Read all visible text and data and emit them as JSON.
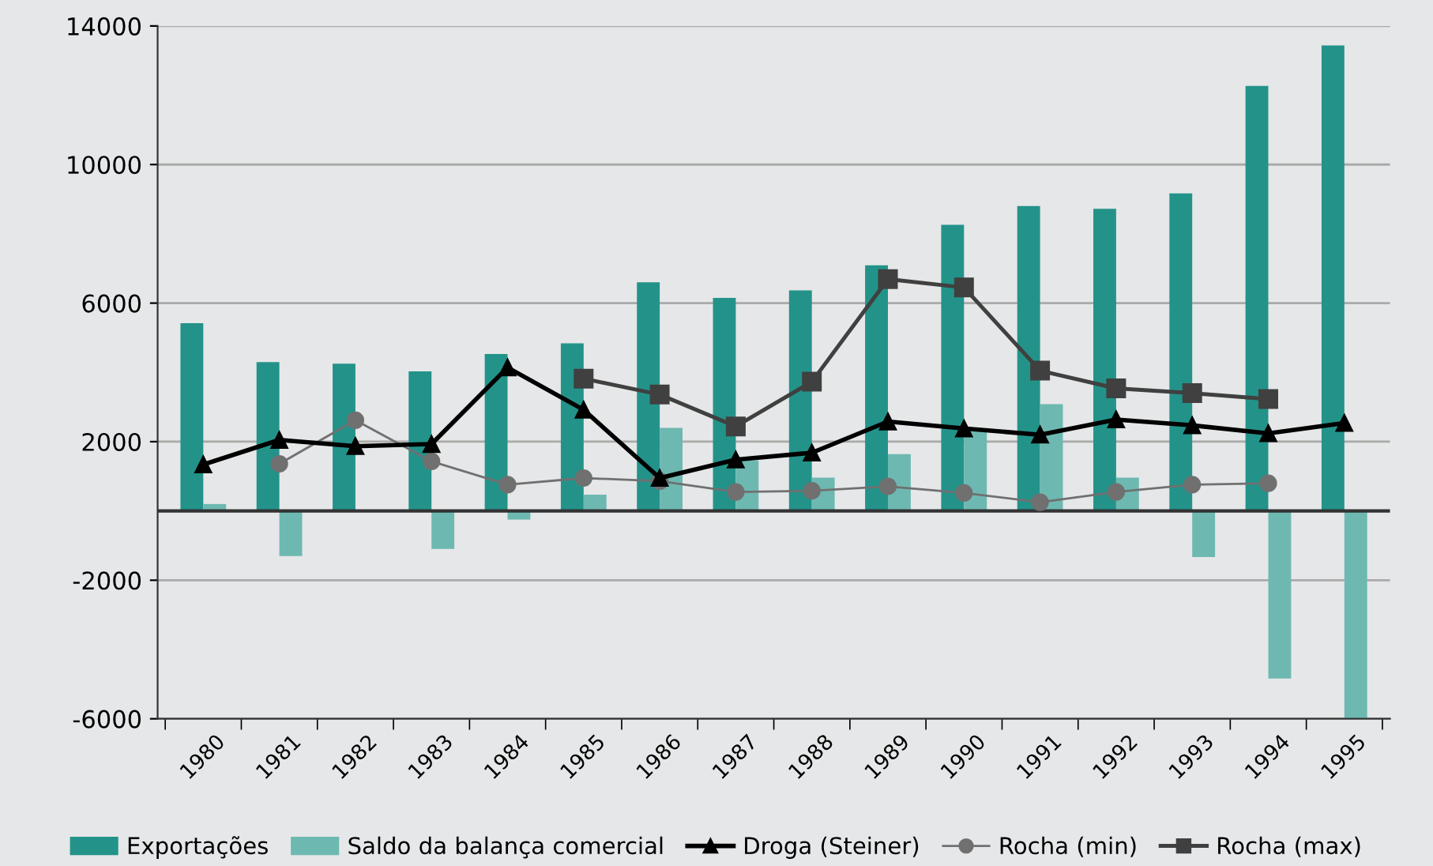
{
  "chart_data": {
    "type": "bar",
    "categories": [
      "1980",
      "1981",
      "1982",
      "1983",
      "1984",
      "1985",
      "1986",
      "1987",
      "1988",
      "1989",
      "1990",
      "1991",
      "1992",
      "1993",
      "1994",
      "1995"
    ],
    "series": [
      {
        "name": "Exportações",
        "color": "#23938a",
        "values": [
          5420,
          4300,
          4250,
          4030,
          4530,
          4840,
          6600,
          6150,
          6370,
          7090,
          8260,
          8800,
          8720,
          9170,
          12270,
          13440
        ]
      },
      {
        "name": "Saldo da balança comercial",
        "color": "#6db9b2",
        "values": [
          200,
          -1300,
          null,
          -1100,
          -250,
          470,
          2400,
          1460,
          960,
          1640,
          2320,
          3080,
          960,
          -1330,
          -4840,
          -6000
        ]
      },
      {
        "name": "Droga (Steiner)",
        "type": "line",
        "color": "#000000",
        "marker": "triangle",
        "values": [
          1340,
          2050,
          1870,
          1930,
          4140,
          2920,
          950,
          1480,
          1680,
          2580,
          2380,
          2200,
          2640,
          2470,
          2240,
          2540
        ]
      },
      {
        "name": "Rocha (min)",
        "type": "line",
        "color": "#707070",
        "marker": "circle",
        "values": [
          null,
          1360,
          2620,
          1430,
          760,
          950,
          860,
          550,
          580,
          710,
          520,
          250,
          550,
          760,
          800,
          null
        ]
      },
      {
        "name": "Rocha (max)",
        "type": "line",
        "color": "#404040",
        "marker": "square",
        "values": [
          null,
          null,
          null,
          null,
          null,
          3820,
          3360,
          2440,
          3730,
          6690,
          6450,
          4050,
          3540,
          3400,
          3230,
          null
        ]
      }
    ],
    "ylim": [
      -6000,
      14000
    ],
    "yticks": [
      -6000,
      -2000,
      2000,
      6000,
      10000,
      14000
    ],
    "grid": "y",
    "legend": "bottom",
    "line_style": "solid"
  }
}
